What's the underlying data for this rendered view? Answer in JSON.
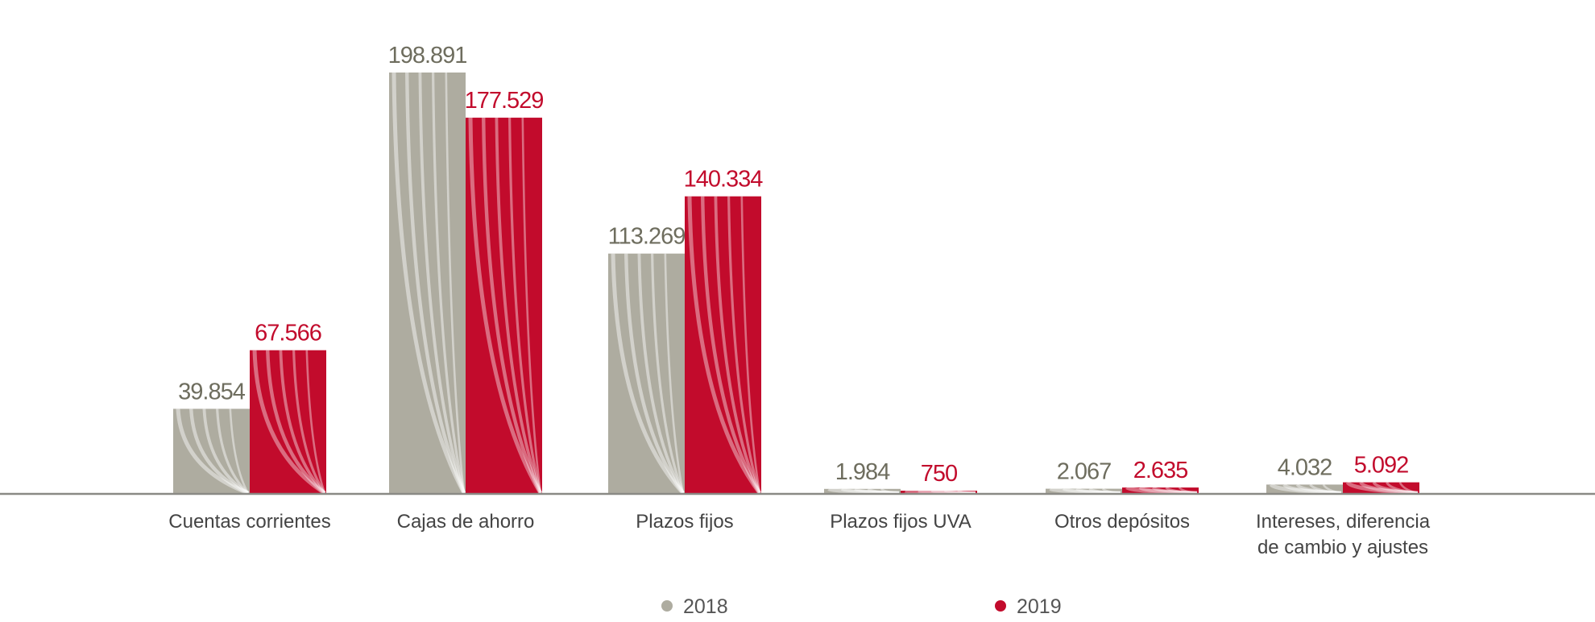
{
  "chart_data": {
    "type": "bar",
    "categories": [
      [
        "Cuentas corrientes"
      ],
      [
        "Cajas de ahorro"
      ],
      [
        "Plazos fijos"
      ],
      [
        "Plazos fijos UVA"
      ],
      [
        "Otros depósitos"
      ],
      [
        "Intereses, diferencia",
        "de cambio y ajustes"
      ]
    ],
    "series": [
      {
        "name": "2018",
        "values": [
          39854,
          198891,
          113269,
          1984,
          2067,
          4032
        ],
        "labels": [
          "39.854",
          "198.891",
          "113.269",
          "1.984",
          "2.067",
          "4.032"
        ],
        "color": "#aeaca0",
        "label_color": "#6e6d5e"
      },
      {
        "name": "2019",
        "values": [
          67566,
          177529,
          140334,
          750,
          2635,
          5092
        ],
        "labels": [
          "67.566",
          "177.529",
          "140.334",
          "750",
          "2.635",
          "5.092"
        ],
        "color": "#c20b2c",
        "label_color": "#c20b2c"
      }
    ],
    "legend_position": "bottom",
    "grid": false
  }
}
